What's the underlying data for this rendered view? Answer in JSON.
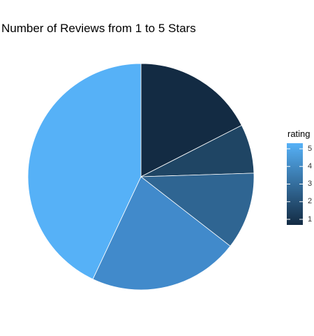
{
  "chart_data": {
    "type": "pie",
    "title": "Number of Reviews from 1 to 5 Stars",
    "legend": {
      "title": "rating",
      "type": "colorbar",
      "placement": "right",
      "breaks": [
        1,
        2,
        3,
        4,
        5
      ],
      "low_color": "#132B43",
      "high_color": "#56B1F7"
    },
    "slices": [
      {
        "rating": 1,
        "value": 17.5,
        "color": "#132B43"
      },
      {
        "rating": 2,
        "value": 7.0,
        "color": "#1F4564"
      },
      {
        "rating": 3,
        "value": 11.0,
        "color": "#2F6592"
      },
      {
        "rating": 4,
        "value": 21.5,
        "color": "#418ACB"
      },
      {
        "rating": 5,
        "value": 43.0,
        "color": "#56B1F7"
      }
    ]
  }
}
